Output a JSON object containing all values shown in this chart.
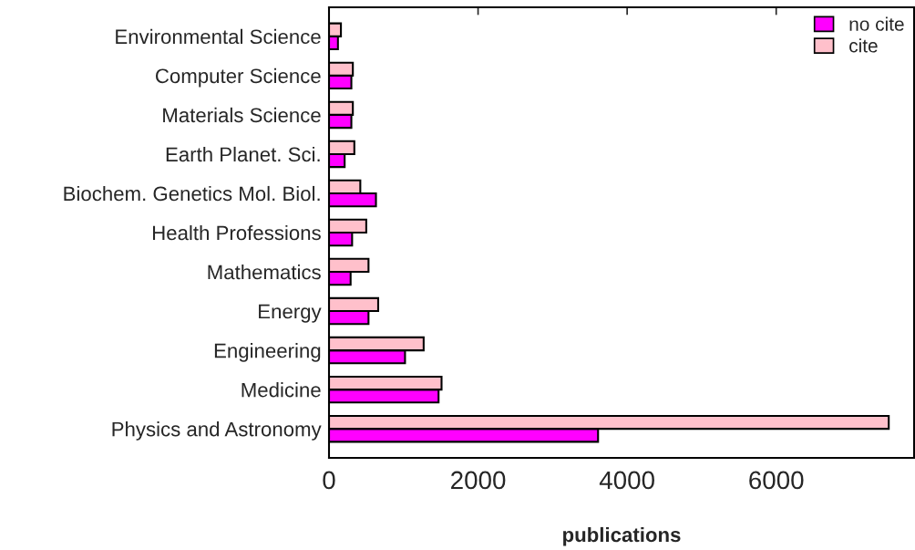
{
  "chart_data": {
    "type": "bar",
    "orientation": "horizontal",
    "xlabel": "publications",
    "categories": [
      "Environmental Science",
      "Computer Science",
      "Materials Science",
      "Earth Planet. Sci.",
      "Biochem. Genetics Mol. Biol.",
      "Health Professions",
      "Mathematics",
      "Energy",
      "Engineering",
      "Medicine",
      "Physics and Astronomy"
    ],
    "series": [
      {
        "name": "no cite",
        "color": "#ff00ff",
        "values": [
          120,
          300,
          300,
          210,
          630,
          310,
          290,
          530,
          1020,
          1470,
          3610
        ]
      },
      {
        "name": "cite",
        "color": "#ffc0cb",
        "values": [
          160,
          320,
          320,
          340,
          420,
          500,
          530,
          660,
          1270,
          1510,
          7510
        ]
      }
    ],
    "xlim": [
      0,
      7850
    ],
    "xticks": [
      0,
      2000,
      4000,
      6000
    ],
    "legend": "top right",
    "grid": false
  }
}
